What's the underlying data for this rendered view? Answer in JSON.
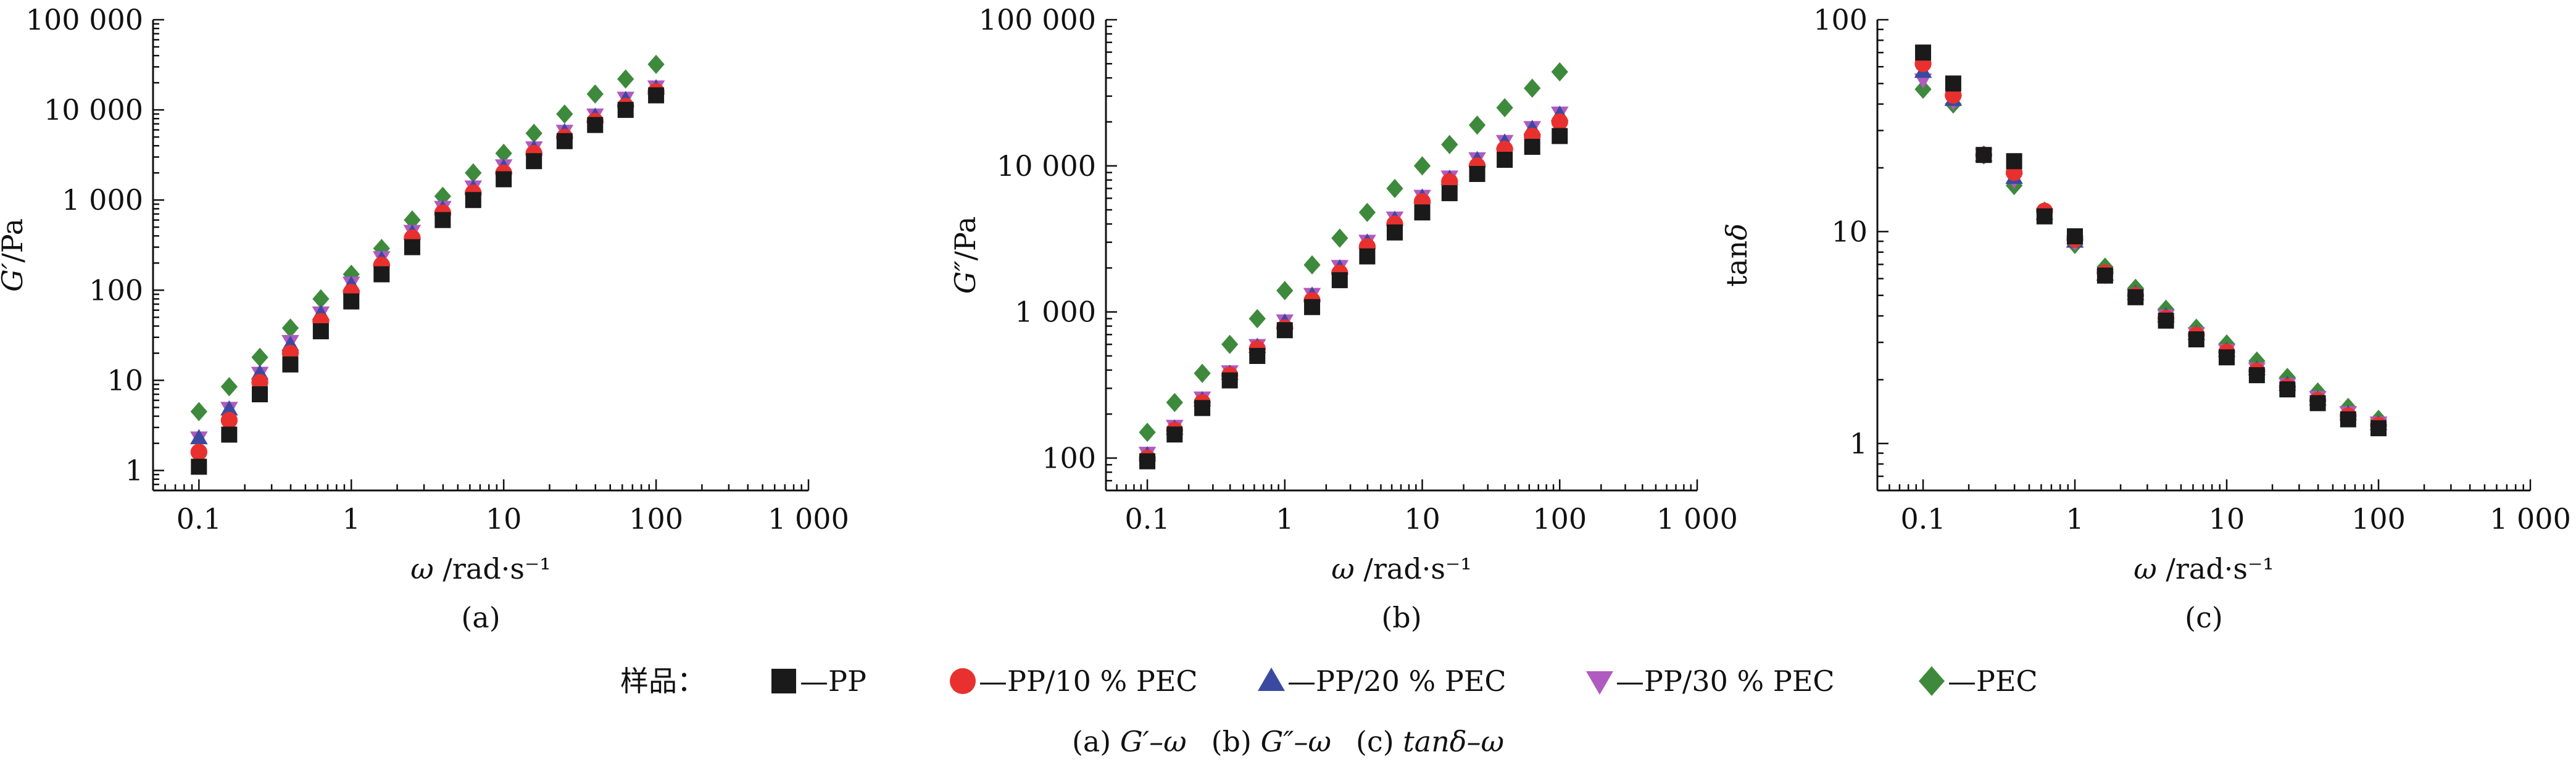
{
  "chart_data": [
    {
      "type": "scatter",
      "panel_label": "(a)",
      "xlabel": "ω /rad·s⁻¹",
      "ylabel": "G′/Pa",
      "xscale": "log",
      "yscale": "log",
      "xlim": [
        0.05,
        1000
      ],
      "ylim": [
        0.6,
        100000
      ],
      "xticks": [
        0.1,
        1,
        10,
        100,
        1000
      ],
      "xtick_labels": [
        "0.1",
        "1",
        "10",
        "100",
        "1 000"
      ],
      "yticks": [
        1,
        10,
        100,
        1000,
        10000,
        100000
      ],
      "ytick_labels": [
        "1",
        "10",
        "100",
        "1 000",
        "10 000",
        "100 000"
      ],
      "x": [
        0.1,
        0.158,
        0.251,
        0.398,
        0.631,
        1,
        1.58,
        2.51,
        3.98,
        6.31,
        10,
        15.8,
        25.1,
        39.8,
        63.1,
        100
      ],
      "series": [
        {
          "name": "PP",
          "values": [
            1.1,
            2.5,
            7,
            15,
            35,
            75,
            150,
            300,
            600,
            1000,
            1700,
            2700,
            4500,
            6800,
            10000,
            14500
          ]
        },
        {
          "name": "PP/10 % PEC",
          "values": [
            1.6,
            3.6,
            9.5,
            20,
            45,
            95,
            190,
            380,
            720,
            1200,
            2000,
            3300,
            5000,
            7500,
            11000,
            16000
          ]
        },
        {
          "name": "PP/20 % PEC",
          "values": [
            2.3,
            4.8,
            12,
            25,
            55,
            115,
            220,
            430,
            800,
            1350,
            2300,
            3700,
            5700,
            8500,
            13000,
            17500
          ]
        },
        {
          "name": "PP/30 % PEC",
          "values": [
            2.3,
            4.9,
            12,
            27,
            56,
            120,
            230,
            450,
            830,
            1400,
            2400,
            3800,
            5800,
            8800,
            13500,
            18000
          ]
        },
        {
          "name": "PEC",
          "values": [
            4.5,
            8.5,
            18,
            38,
            80,
            150,
            290,
            600,
            1100,
            2000,
            3300,
            5500,
            9000,
            15000,
            22000,
            32000
          ]
        }
      ]
    },
    {
      "type": "scatter",
      "panel_label": "(b)",
      "xlabel": "ω /rad·s⁻¹",
      "ylabel": "G″/Pa",
      "xscale": "log",
      "yscale": "log",
      "xlim": [
        0.05,
        1000
      ],
      "ylim": [
        60,
        100000
      ],
      "xticks": [
        0.1,
        1,
        10,
        100,
        1000
      ],
      "xtick_labels": [
        "0.1",
        "1",
        "10",
        "100",
        "1 000"
      ],
      "yticks": [
        100,
        1000,
        10000,
        100000
      ],
      "ytick_labels": [
        "100",
        "1 000",
        "10 000",
        "100 000"
      ],
      "x": [
        0.1,
        0.158,
        0.251,
        0.398,
        0.631,
        1,
        1.58,
        2.51,
        3.98,
        6.31,
        10,
        15.8,
        25.1,
        39.8,
        63.1,
        100
      ],
      "series": [
        {
          "name": "PP",
          "values": [
            95,
            145,
            220,
            340,
            500,
            750,
            1080,
            1650,
            2400,
            3500,
            4800,
            6500,
            8800,
            11000,
            13500,
            16000
          ]
        },
        {
          "name": "PP/10 % PEC",
          "values": [
            100,
            155,
            240,
            370,
            560,
            780,
            1200,
            1850,
            2800,
            4000,
            5700,
            7800,
            10000,
            13000,
            16000,
            20000
          ]
        },
        {
          "name": "PP/20 % PEC",
          "values": [
            105,
            160,
            250,
            380,
            580,
            850,
            1300,
            2000,
            3000,
            4300,
            6100,
            8200,
            11000,
            14500,
            18000,
            22500
          ]
        },
        {
          "name": "PP/30 % PEC",
          "values": [
            108,
            165,
            258,
            390,
            590,
            870,
            1320,
            2050,
            3050,
            4400,
            6200,
            8400,
            11200,
            14700,
            18300,
            23000
          ]
        },
        {
          "name": "PEC",
          "values": [
            150,
            240,
            380,
            600,
            900,
            1400,
            2100,
            3200,
            4800,
            7000,
            10000,
            14000,
            19000,
            25000,
            34000,
            44000
          ]
        }
      ]
    },
    {
      "type": "scatter",
      "panel_label": "(c)",
      "xlabel": "ω /rad·s⁻¹",
      "ylabel": "tanδ",
      "xscale": "log",
      "yscale": "log",
      "xlim": [
        0.05,
        1000
      ],
      "ylim": [
        0.6,
        100
      ],
      "xticks": [
        0.1,
        1,
        10,
        100,
        1000
      ],
      "xtick_labels": [
        "0.1",
        "1",
        "10",
        "100",
        "1 000"
      ],
      "yticks": [
        1,
        10,
        100
      ],
      "ytick_labels": [
        "1",
        "10",
        "100"
      ],
      "x": [
        0.1,
        0.158,
        0.251,
        0.398,
        0.631,
        1,
        1.58,
        2.51,
        3.98,
        6.31,
        10,
        15.8,
        25.1,
        39.8,
        63.1,
        100
      ],
      "series": [
        {
          "name": "PP",
          "values": [
            70,
            50,
            23,
            21.5,
            11.8,
            9.5,
            6.2,
            4.9,
            3.8,
            3.1,
            2.55,
            2.1,
            1.8,
            1.55,
            1.3,
            1.18
          ]
        },
        {
          "name": "PP/10 % PEC",
          "values": [
            62,
            44,
            23,
            19,
            12.5,
            9.2,
            6.4,
            5.0,
            3.9,
            3.25,
            2.7,
            2.2,
            1.85,
            1.6,
            1.35,
            1.22
          ]
        },
        {
          "name": "PP/20 % PEC",
          "values": [
            57,
            42,
            23,
            18,
            12.2,
            9.0,
            6.3,
            5.1,
            4.0,
            3.3,
            2.75,
            2.25,
            1.9,
            1.62,
            1.38,
            1.24
          ]
        },
        {
          "name": "PP/30 % PEC",
          "values": [
            52,
            41,
            23,
            17.5,
            12.0,
            8.9,
            6.2,
            5.0,
            4.0,
            3.3,
            2.75,
            2.25,
            1.9,
            1.65,
            1.4,
            1.25
          ]
        },
        {
          "name": "PEC",
          "values": [
            47,
            40,
            23,
            16.5,
            12.5,
            8.7,
            6.8,
            5.4,
            4.3,
            3.5,
            2.95,
            2.45,
            2.05,
            1.75,
            1.48,
            1.3
          ]
        }
      ]
    }
  ],
  "legend": {
    "prefix": "样品：",
    "items": [
      {
        "label": "—PP",
        "marker": "square",
        "color": "#1a1a1a"
      },
      {
        "label": "—PP/10 % PEC",
        "marker": "circle",
        "color": "#e8312f"
      },
      {
        "label": "—PP/20 % PEC",
        "marker": "triangle-up",
        "color": "#3b4aa0"
      },
      {
        "label": "—PP/30 % PEC",
        "marker": "triangle-down",
        "color": "#b05bbf"
      },
      {
        "label": "—PEC",
        "marker": "diamond",
        "color": "#3e8a3c"
      }
    ]
  },
  "caption": "(a) G′–ω    (b) G″–ω    (c) tanδ–ω",
  "caption_parts": {
    "a": "(a) ",
    "a_sym": "G′–ω",
    "b": "(b) ",
    "b_sym": "G″–ω",
    "c": "(c) ",
    "c_sym": "tanδ–ω"
  }
}
